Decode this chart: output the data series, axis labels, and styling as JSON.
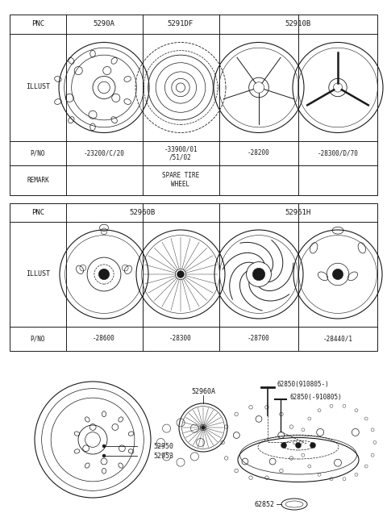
{
  "bg_color": "#ffffff",
  "line_color": "#1a1a1a",
  "text_color": "#1a1a1a",
  "t1_pnc": [
    "PNC",
    "5290A",
    "5291DF",
    "52910B"
  ],
  "t1_pno": [
    "P/NO",
    "-23200/C/20",
    "-33900/01\n/51/02",
    "-28200",
    "-28300/D/70"
  ],
  "t1_remark": [
    "REMARK",
    "",
    "SPARE TIRE\nWHEEL",
    "",
    ""
  ],
  "t2_pnc": [
    "PNC",
    "52960B",
    "52961H"
  ],
  "t2_pno": [
    "P/NO",
    "-28600",
    "-28300",
    "-28700",
    "-28440/1"
  ],
  "font_small": 5.5,
  "font_med": 6.0,
  "font_pnc": 6.5
}
